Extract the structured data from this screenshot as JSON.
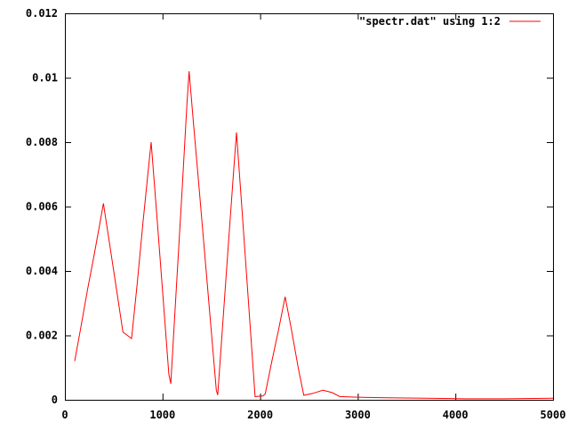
{
  "window": {
    "background": "#ffffff",
    "border_color": "#000000",
    "text_color": "#000000"
  },
  "chart_data": {
    "type": "line",
    "title": "",
    "xlabel": "",
    "ylabel": "",
    "xlim": [
      0,
      5000
    ],
    "ylim": [
      0,
      0.012
    ],
    "grid": false,
    "tick_mirror": true,
    "legend": {
      "position": "top-right-inside",
      "label": "\"spectr.dat\" using 1:2"
    },
    "xticks": {
      "values": [
        0,
        1000,
        2000,
        3000,
        4000,
        5000
      ],
      "labels": [
        "0",
        "1000",
        "2000",
        "3000",
        "4000",
        "5000"
      ]
    },
    "yticks": {
      "values": [
        0,
        0.002,
        0.004,
        0.006,
        0.008,
        0.01,
        0.012
      ],
      "labels": [
        "0",
        "0.002",
        "0.004",
        "0.006",
        "0.008",
        "0.01",
        "0.012"
      ]
    },
    "series": [
      {
        "name": "\"spectr.dat\" using 1:2",
        "color": "#ff0000",
        "points": [
          [
            100,
            0.0012
          ],
          [
            160,
            0.0022
          ],
          [
            230,
            0.0034
          ],
          [
            300,
            0.0045
          ],
          [
            360,
            0.0055
          ],
          [
            394,
            0.0061
          ],
          [
            450,
            0.005
          ],
          [
            520,
            0.0036
          ],
          [
            595,
            0.0021
          ],
          [
            640,
            0.002
          ],
          [
            683,
            0.0019
          ],
          [
            740,
            0.0036
          ],
          [
            800,
            0.0055
          ],
          [
            850,
            0.007
          ],
          [
            883,
            0.008
          ],
          [
            940,
            0.0058
          ],
          [
            1000,
            0.0034
          ],
          [
            1065,
            0.0008
          ],
          [
            1085,
            0.0005
          ],
          [
            1140,
            0.0034
          ],
          [
            1200,
            0.0065
          ],
          [
            1250,
            0.0092
          ],
          [
            1272,
            0.0102
          ],
          [
            1320,
            0.0085
          ],
          [
            1380,
            0.0064
          ],
          [
            1450,
            0.0039
          ],
          [
            1551,
            0.0003
          ],
          [
            1566,
            0.00015
          ],
          [
            1620,
            0.0025
          ],
          [
            1690,
            0.0055
          ],
          [
            1740,
            0.0076
          ],
          [
            1758,
            0.0083
          ],
          [
            1810,
            0.0061
          ],
          [
            1870,
            0.0035
          ],
          [
            1930,
            0.0009
          ],
          [
            1948,
            0.0001
          ],
          [
            2030,
            0.00012
          ],
          [
            2052,
            0.00018
          ],
          [
            2120,
            0.0012
          ],
          [
            2190,
            0.0022
          ],
          [
            2256,
            0.0032
          ],
          [
            2320,
            0.0022
          ],
          [
            2390,
            0.001
          ],
          [
            2447,
            0.00014
          ],
          [
            2540,
            0.0002
          ],
          [
            2644,
            0.0003
          ],
          [
            2740,
            0.00022
          ],
          [
            2815,
            0.0001
          ],
          [
            3000,
            8e-05
          ],
          [
            3300,
            6e-05
          ],
          [
            3700,
            5e-05
          ],
          [
            4100,
            3e-05
          ],
          [
            4500,
            3e-05
          ],
          [
            5000,
            5e-05
          ]
        ]
      }
    ]
  }
}
